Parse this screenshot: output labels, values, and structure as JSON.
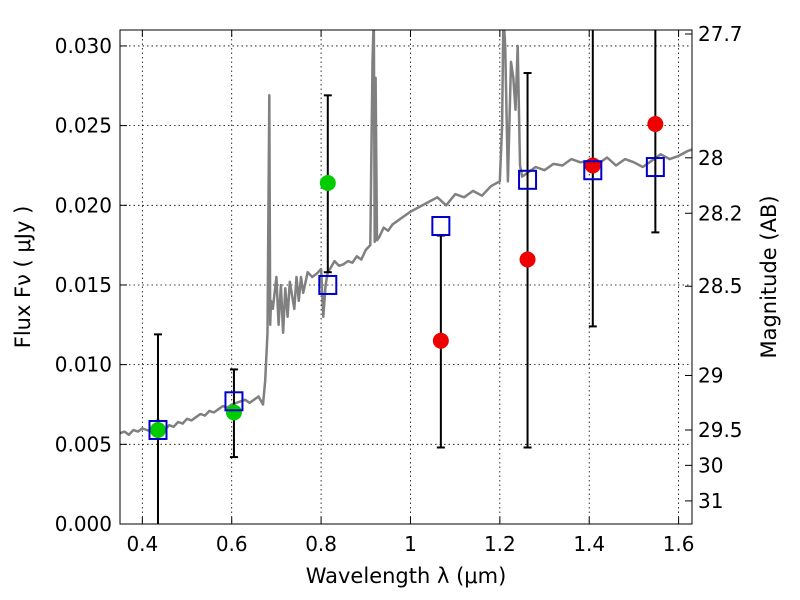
{
  "chart_data": {
    "type": "scatter",
    "xlabel": "Wavelength  λ (μm)",
    "ylabel": "Flux  Fν  ( μJy )",
    "y2label": "Magnitude (AB)",
    "xlim": [
      0.35,
      1.63
    ],
    "ylim": [
      0.0,
      0.031
    ],
    "grid": true,
    "x_ticks": [
      {
        "value": 0.4,
        "label": "0.4"
      },
      {
        "value": 0.6,
        "label": "0.6"
      },
      {
        "value": 0.8,
        "label": "0.8"
      },
      {
        "value": 1.0,
        "label": "1"
      },
      {
        "value": 1.2,
        "label": "1.2"
      },
      {
        "value": 1.4,
        "label": "1.4"
      },
      {
        "value": 1.6,
        "label": "1.6"
      }
    ],
    "y_ticks": [
      {
        "value": 0.0,
        "label": "0.000"
      },
      {
        "value": 0.005,
        "label": "0.005"
      },
      {
        "value": 0.01,
        "label": "0.010"
      },
      {
        "value": 0.015,
        "label": "0.015"
      },
      {
        "value": 0.02,
        "label": "0.020"
      },
      {
        "value": 0.025,
        "label": "0.025"
      },
      {
        "value": 0.03,
        "label": "0.030"
      }
    ],
    "y2_ticks": [
      {
        "label": "27.7",
        "flux": 0.03075
      },
      {
        "label": "28",
        "flux": 0.02298
      },
      {
        "label": "28.2",
        "flux": 0.0195
      },
      {
        "label": "28.5",
        "flux": 0.01492
      },
      {
        "label": "29",
        "flux": 0.00932
      },
      {
        "label": "29.5",
        "flux": 0.0059
      },
      {
        "label": "30",
        "flux": 0.00368
      },
      {
        "label": "31",
        "flux": 0.00145
      }
    ],
    "colors": {
      "model": "#808080",
      "green_points": "#00cc00",
      "red_points": "#ee0000",
      "model_boxes": "#0000cc",
      "errorbars": "#000000"
    },
    "series": [
      {
        "kind": "line",
        "color": "#808080",
        "x": [
          0.35,
          0.36,
          0.37,
          0.38,
          0.39,
          0.4,
          0.41,
          0.42,
          0.43,
          0.435,
          0.44,
          0.45,
          0.46,
          0.47,
          0.48,
          0.49,
          0.5,
          0.51,
          0.52,
          0.53,
          0.54,
          0.55,
          0.56,
          0.57,
          0.58,
          0.59,
          0.6,
          0.61,
          0.62,
          0.63,
          0.64,
          0.65,
          0.66,
          0.67,
          0.675,
          0.68,
          0.684,
          0.686,
          0.688,
          0.692,
          0.7,
          0.705,
          0.71,
          0.715,
          0.72,
          0.725,
          0.73,
          0.74,
          0.745,
          0.75,
          0.755,
          0.76,
          0.77,
          0.78,
          0.79,
          0.8,
          0.805,
          0.81,
          0.815,
          0.82,
          0.83,
          0.84,
          0.85,
          0.86,
          0.87,
          0.88,
          0.89,
          0.9,
          0.91,
          0.915,
          0.918,
          0.92,
          0.922,
          0.925,
          0.93,
          0.94,
          0.95,
          0.96,
          0.97,
          0.98,
          0.99,
          1.0,
          1.02,
          1.04,
          1.06,
          1.08,
          1.1,
          1.12,
          1.14,
          1.16,
          1.18,
          1.2,
          1.205,
          1.208,
          1.212,
          1.218,
          1.225,
          1.23,
          1.235,
          1.24,
          1.245,
          1.25,
          1.26,
          1.28,
          1.3,
          1.32,
          1.34,
          1.36,
          1.38,
          1.4,
          1.42,
          1.44,
          1.46,
          1.48,
          1.5,
          1.52,
          1.54,
          1.56,
          1.58,
          1.6,
          1.62,
          1.63
        ],
        "y": [
          0.0057,
          0.0058,
          0.0056,
          0.0059,
          0.0058,
          0.006,
          0.0059,
          0.0058,
          0.0061,
          0.0066,
          0.006,
          0.0059,
          0.0062,
          0.0061,
          0.0064,
          0.0063,
          0.0066,
          0.0065,
          0.0067,
          0.0069,
          0.0068,
          0.0071,
          0.007,
          0.0072,
          0.0074,
          0.0073,
          0.0075,
          0.0076,
          0.0077,
          0.0078,
          0.0076,
          0.0078,
          0.008,
          0.0075,
          0.009,
          0.012,
          0.0269,
          0.0125,
          0.014,
          0.0135,
          0.0155,
          0.0125,
          0.015,
          0.012,
          0.0148,
          0.013,
          0.0152,
          0.0135,
          0.0155,
          0.014,
          0.0155,
          0.0145,
          0.0158,
          0.0155,
          0.0157,
          0.016,
          0.013,
          0.015,
          0.0158,
          0.016,
          0.0165,
          0.0162,
          0.0163,
          0.0165,
          0.0164,
          0.0168,
          0.0166,
          0.0172,
          0.0175,
          0.029,
          0.032,
          0.0177,
          0.028,
          0.0178,
          0.018,
          0.0186,
          0.0184,
          0.0188,
          0.019,
          0.0192,
          0.0194,
          0.0196,
          0.0199,
          0.0202,
          0.0205,
          0.02,
          0.0207,
          0.0205,
          0.0209,
          0.0206,
          0.0212,
          0.0215,
          0.025,
          0.032,
          0.03,
          0.0215,
          0.029,
          0.028,
          0.026,
          0.03,
          0.0225,
          0.0218,
          0.022,
          0.0224,
          0.0222,
          0.0226,
          0.0225,
          0.0229,
          0.0227,
          0.0228,
          0.0226,
          0.023,
          0.0225,
          0.0229,
          0.0227,
          0.0224,
          0.0228,
          0.0232,
          0.0229,
          0.0231,
          0.0234,
          0.0235
        ]
      },
      {
        "kind": "points",
        "color": "#00cc00",
        "x": [
          0.435,
          0.605,
          0.815
        ],
        "y": [
          0.0059,
          0.007,
          0.0214
        ]
      },
      {
        "kind": "points",
        "color": "#ee0000",
        "x": [
          1.068,
          1.262,
          1.408,
          1.548
        ],
        "y": [
          0.0115,
          0.0166,
          0.0225,
          0.0251
        ]
      },
      {
        "kind": "boxes",
        "color": "#0000cc",
        "x": [
          0.435,
          0.605,
          0.815,
          1.068,
          1.262,
          1.408,
          1.548
        ],
        "y": [
          0.0059,
          0.0077,
          0.015,
          0.0187,
          0.0216,
          0.0222,
          0.0224
        ]
      },
      {
        "kind": "errorbars",
        "color": "#000000",
        "x": [
          0.435,
          0.605,
          0.815,
          1.068,
          1.262,
          1.408,
          1.548
        ],
        "low": [
          0.0,
          0.0042,
          0.0158,
          0.0048,
          0.0048,
          0.0124,
          0.0183
        ],
        "high": [
          0.0119,
          0.0097,
          0.0269,
          0.0181,
          0.0283,
          0.031,
          0.031
        ],
        "cap_low": [
          false,
          true,
          true,
          true,
          true,
          true,
          true
        ],
        "cap_high": [
          true,
          true,
          true,
          true,
          true,
          false,
          false
        ]
      }
    ]
  }
}
